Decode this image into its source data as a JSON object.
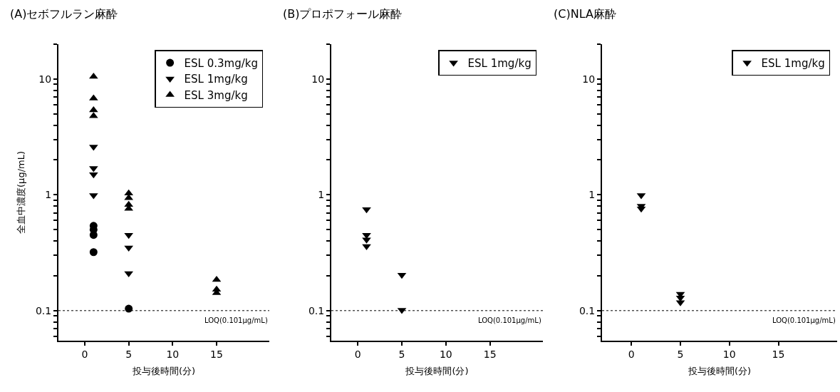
{
  "chart_data": [
    {
      "type": "scatter",
      "title": "(A)セボフルラン麻酔",
      "xlabel": "投与後時間(分)",
      "ylabel": "全血中濃度(μg/mL)",
      "log": "y",
      "legend": "top right",
      "xlim": [
        -3,
        21
      ],
      "xticks": [
        0,
        5,
        10,
        15
      ],
      "ylim": [
        0.055,
        20
      ],
      "yticks": [
        {
          "value": 0.06,
          "label": null
        },
        {
          "value": 0.07,
          "label": null
        },
        {
          "value": 0.08,
          "label": null
        },
        {
          "value": 0.09,
          "label": null
        },
        0.1,
        {
          "value": 0.2,
          "label": null
        },
        {
          "value": 0.3,
          "label": null
        },
        {
          "value": 0.4,
          "label": null
        },
        {
          "value": 0.5,
          "label": null
        },
        {
          "value": 0.6,
          "label": null
        },
        {
          "value": 0.7,
          "label": null
        },
        {
          "value": 0.8,
          "label": null
        },
        {
          "value": 0.9,
          "label": null
        },
        1,
        {
          "value": 2,
          "label": null
        },
        {
          "value": 3,
          "label": null
        },
        {
          "value": 4,
          "label": null
        },
        {
          "value": 5,
          "label": null
        },
        {
          "value": 6,
          "label": null
        },
        {
          "value": 7,
          "label": null
        },
        {
          "value": 8,
          "label": null
        },
        {
          "value": 9,
          "label": null
        },
        10,
        {
          "value": 20,
          "label": null
        }
      ],
      "ref_lines": [
        {
          "axis": "y",
          "value": 0.1,
          "label": "LOQ(0.101μg/mL)",
          "line_style": "dotted",
          "color": "#000000"
        }
      ],
      "series": [
        {
          "name": "ESL 0.3mg/kg",
          "color": "#000000",
          "marker": "circle",
          "x": [
            1,
            1,
            1,
            1,
            5
          ],
          "values": [
            0.54,
            0.5,
            0.45,
            0.32,
            0.104
          ]
        },
        {
          "name": "ESL 1mg/kg",
          "color": "#000000",
          "marker": "triangle-down",
          "x": [
            1,
            1,
            1,
            1,
            5,
            5,
            5
          ],
          "values": [
            2.6,
            1.7,
            1.5,
            0.99,
            0.45,
            0.35,
            0.21
          ]
        },
        {
          "name": "ESL 3mg/kg",
          "color": "#000000",
          "marker": "triangle",
          "x": [
            1,
            1,
            1,
            1,
            5,
            5,
            5,
            5,
            15,
            15,
            15
          ],
          "values": [
            10.5,
            6.8,
            5.4,
            4.8,
            1.03,
            0.94,
            0.82,
            0.76,
            0.185,
            0.152,
            0.142
          ]
        }
      ]
    },
    {
      "type": "scatter",
      "title": "(B)プロポフォール麻酔",
      "xlabel": "投与後時間(分)",
      "log": "y",
      "legend": "top right",
      "xlim": [
        -3,
        21
      ],
      "xticks": [
        0,
        5,
        10,
        15
      ],
      "ylim": [
        0.055,
        20
      ],
      "yticks": [
        {
          "value": 0.06,
          "label": null
        },
        {
          "value": 0.07,
          "label": null
        },
        {
          "value": 0.08,
          "label": null
        },
        {
          "value": 0.09,
          "label": null
        },
        0.1,
        {
          "value": 0.2,
          "label": null
        },
        {
          "value": 0.3,
          "label": null
        },
        {
          "value": 0.4,
          "label": null
        },
        {
          "value": 0.5,
          "label": null
        },
        {
          "value": 0.6,
          "label": null
        },
        {
          "value": 0.7,
          "label": null
        },
        {
          "value": 0.8,
          "label": null
        },
        {
          "value": 0.9,
          "label": null
        },
        1,
        {
          "value": 2,
          "label": null
        },
        {
          "value": 3,
          "label": null
        },
        {
          "value": 4,
          "label": null
        },
        {
          "value": 5,
          "label": null
        },
        {
          "value": 6,
          "label": null
        },
        {
          "value": 7,
          "label": null
        },
        {
          "value": 8,
          "label": null
        },
        {
          "value": 9,
          "label": null
        },
        10,
        {
          "value": 20,
          "label": null
        }
      ],
      "ref_lines": [
        {
          "axis": "y",
          "value": 0.1,
          "label": "LOQ(0.101μg/mL)",
          "line_style": "dotted",
          "color": "#000000"
        }
      ],
      "series": [
        {
          "name": "ESL 1mg/kg",
          "color": "#000000",
          "marker": "triangle-down",
          "x": [
            1,
            1,
            1,
            1,
            5,
            5
          ],
          "values": [
            0.75,
            0.45,
            0.41,
            0.36,
            0.203,
            0.101
          ]
        }
      ]
    },
    {
      "type": "scatter",
      "title": "(C)NLA麻酔",
      "xlabel": "投与後時間(分)",
      "log": "y",
      "legend": "top right",
      "xlim": [
        -3,
        21
      ],
      "xticks": [
        0,
        5,
        10,
        15
      ],
      "ylim": [
        0.055,
        20
      ],
      "yticks": [
        {
          "value": 0.06,
          "label": null
        },
        {
          "value": 0.07,
          "label": null
        },
        {
          "value": 0.08,
          "label": null
        },
        {
          "value": 0.09,
          "label": null
        },
        0.1,
        {
          "value": 0.2,
          "label": null
        },
        {
          "value": 0.3,
          "label": null
        },
        {
          "value": 0.4,
          "label": null
        },
        {
          "value": 0.5,
          "label": null
        },
        {
          "value": 0.6,
          "label": null
        },
        {
          "value": 0.7,
          "label": null
        },
        {
          "value": 0.8,
          "label": null
        },
        {
          "value": 0.9,
          "label": null
        },
        1,
        {
          "value": 2,
          "label": null
        },
        {
          "value": 3,
          "label": null
        },
        {
          "value": 4,
          "label": null
        },
        {
          "value": 5,
          "label": null
        },
        {
          "value": 6,
          "label": null
        },
        {
          "value": 7,
          "label": null
        },
        {
          "value": 8,
          "label": null
        },
        {
          "value": 9,
          "label": null
        },
        10,
        {
          "value": 20,
          "label": null
        }
      ],
      "ref_lines": [
        {
          "axis": "y",
          "value": 0.1,
          "label": "LOQ(0.101μg/mL)",
          "line_style": "dotted",
          "color": "#000000"
        }
      ],
      "series": [
        {
          "name": "ESL 1mg/kg",
          "color": "#000000",
          "marker": "triangle-down",
          "x": [
            1,
            1,
            1,
            5,
            5,
            5
          ],
          "values": [
            0.99,
            0.8,
            0.76,
            0.139,
            0.129,
            0.118
          ]
        }
      ]
    }
  ]
}
